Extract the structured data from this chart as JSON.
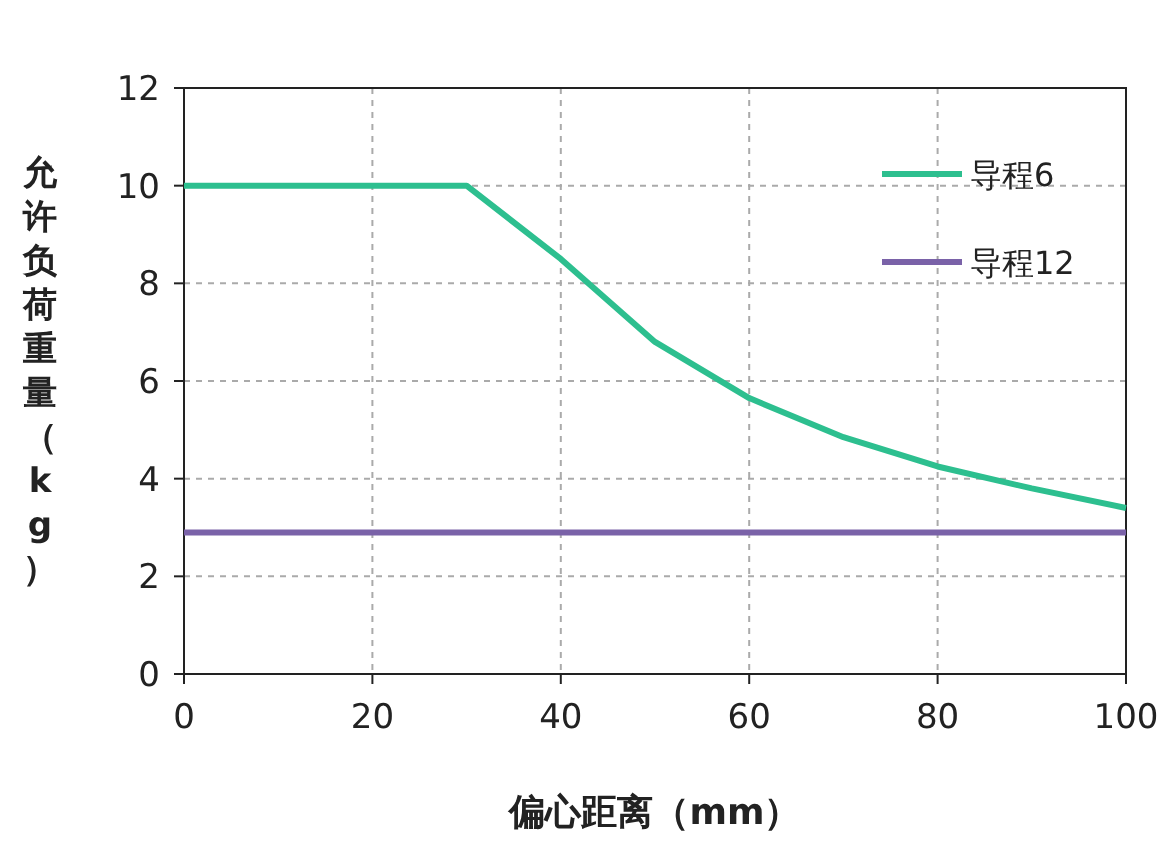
{
  "chart_data": {
    "type": "line",
    "xlabel": "偏心距离（mm）",
    "ylabel": "允许负荷重量（kg）",
    "xlim": [
      0,
      100
    ],
    "xticks": [
      0,
      20,
      40,
      60,
      80,
      100
    ],
    "ylim": [
      0,
      12
    ],
    "yticks": [
      0,
      2,
      4,
      6,
      8,
      10,
      12
    ],
    "grid": true,
    "legend": "top right",
    "marker": "none",
    "line_style": "solid",
    "series": [
      {
        "name": "导程6",
        "color": "#2dbf8f",
        "x": [
          0,
          30,
          40,
          50,
          60,
          70,
          80,
          90,
          100
        ],
        "values": [
          10,
          10,
          8.5,
          6.8,
          5.65,
          4.85,
          4.25,
          3.8,
          3.4
        ]
      },
      {
        "name": "导程12",
        "color": "#7a62a8",
        "x": [
          0,
          100
        ],
        "values": [
          2.9,
          2.9
        ]
      }
    ]
  }
}
